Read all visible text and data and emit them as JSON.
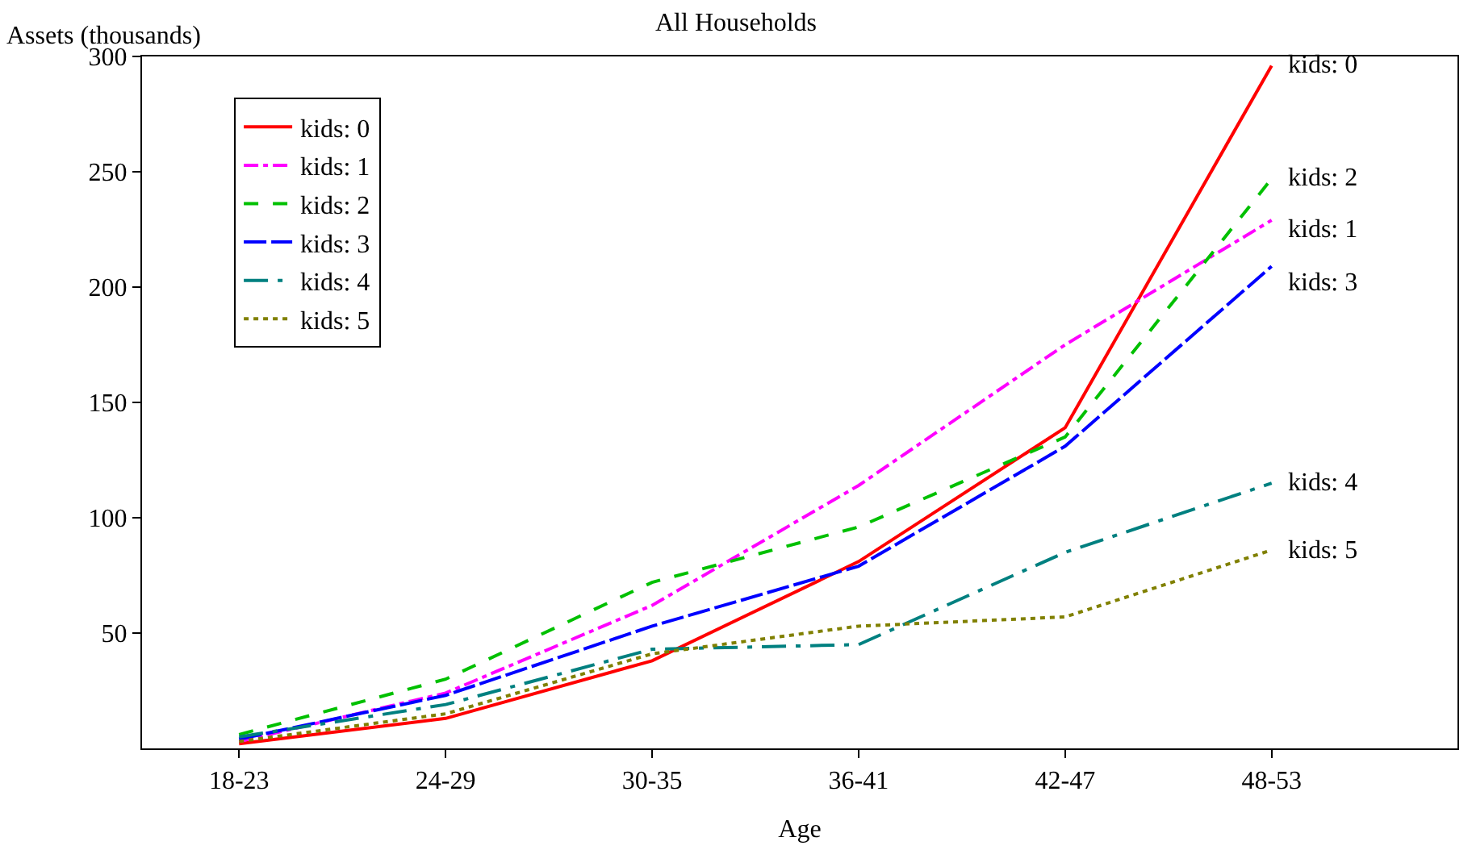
{
  "chart_data": {
    "type": "line",
    "title": "All Households",
    "xlabel": "Age",
    "ylabel": "Assets (thousands)",
    "categories": [
      "18-23",
      "24-29",
      "30-35",
      "36-41",
      "42-47",
      "48-53"
    ],
    "ylim": [
      0,
      300
    ],
    "yticks": [
      50,
      100,
      150,
      200,
      250,
      300
    ],
    "legend": "top left",
    "marker": "none",
    "series": [
      {
        "name": "kids: 0",
        "color": "#ff0000",
        "line_style": "solid",
        "values": [
          2,
          13,
          38,
          81,
          139,
          296
        ]
      },
      {
        "name": "kids: 1",
        "color": "#ff00ff",
        "line_style": "dashdot",
        "values": [
          3,
          24,
          62,
          114,
          175,
          229
        ]
      },
      {
        "name": "kids: 2",
        "color": "#00c000",
        "line_style": "dashed",
        "values": [
          6,
          30,
          72,
          96,
          135,
          247
        ]
      },
      {
        "name": "kids: 3",
        "color": "#0000ff",
        "line_style": "longdash",
        "values": [
          4,
          23,
          53,
          79,
          131,
          209
        ]
      },
      {
        "name": "kids: 4",
        "color": "#008080",
        "line_style": "longdashdot",
        "values": [
          5,
          19,
          43,
          45,
          85,
          115
        ]
      },
      {
        "name": "kids: 5",
        "color": "#808000",
        "line_style": "dotted",
        "values": [
          3,
          15,
          41,
          53,
          57,
          86
        ]
      }
    ]
  }
}
